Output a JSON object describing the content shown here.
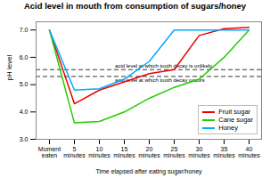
{
  "chart_data": {
    "type": "line",
    "title": "Acid level in mouth from consumption of sugars/honey",
    "xlabel": "Time elapsed after eating sugar/honey",
    "ylabel": "pH level",
    "categories": [
      "Moment\neaten",
      "5\nminutes",
      "10\nminutes",
      "15\nminutes",
      "20\nminutes",
      "25\nminutes",
      "30\nminutes",
      "35\nminutes",
      "40\nminutes"
    ],
    "series": [
      {
        "name": "Fruit sugar",
        "color": "#ee0000",
        "values": [
          7.0,
          4.3,
          4.8,
          5.1,
          5.4,
          5.55,
          6.8,
          7.05,
          7.1
        ]
      },
      {
        "name": "Cane sugar",
        "color": "#22cc00",
        "values": [
          7.0,
          3.6,
          3.65,
          4.0,
          4.5,
          4.9,
          5.2,
          6.0,
          7.0
        ]
      },
      {
        "name": "Honey",
        "color": "#00aaff",
        "values": [
          7.0,
          4.8,
          4.85,
          5.2,
          5.85,
          7.0,
          7.0,
          7.0,
          7.0
        ]
      }
    ],
    "hlines": [
      {
        "y": 5.55,
        "text": "acid level at which tooth decay is unlikely",
        "line_style": "dashed"
      },
      {
        "y": 5.3,
        "text": "acid level at which tooth decay occurs",
        "line_style": "dashed"
      }
    ],
    "ylim": [
      3,
      7.3
    ],
    "yticks": [
      3,
      4,
      5,
      6,
      7
    ],
    "grid": false,
    "legend": "lower right"
  }
}
